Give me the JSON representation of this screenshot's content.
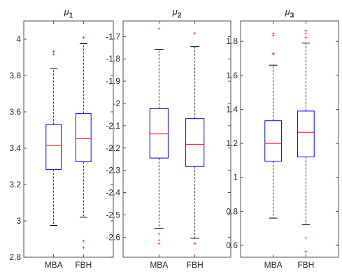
{
  "chart_data": [
    {
      "type": "boxplot",
      "title_base": "μ",
      "title_sub": "1",
      "categories": [
        "MBA",
        "FBH"
      ],
      "ylim": [
        2.8,
        4.1
      ],
      "yticks": [
        "2.8",
        "3",
        "3.2",
        "3.4",
        "3.6",
        "3.8",
        "4"
      ],
      "boxes": [
        {
          "category": "MBA",
          "whisker_low": 2.975,
          "q1": 3.283,
          "median": 3.415,
          "q3": 3.53,
          "whisker_high": 3.837,
          "outliers": [
            3.92,
            3.935
          ]
        },
        {
          "category": "FBH",
          "whisker_low": 3.02,
          "q1": 3.325,
          "median": 3.453,
          "q3": 3.59,
          "whisker_high": 3.975,
          "outliers": [
            4.01,
            2.89,
            2.853
          ]
        }
      ]
    },
    {
      "type": "boxplot",
      "title_base": "μ",
      "title_sub": "2",
      "categories": [
        "MBA",
        "FBH"
      ],
      "ylim": [
        -2.69,
        -1.63
      ],
      "yticks": [
        "-2.6",
        "-2.5",
        "-2.4",
        "-2.3",
        "-2.2",
        "-2.1",
        "-2",
        "-1.9",
        "-1.8",
        "-1.7"
      ],
      "boxes": [
        {
          "category": "MBA",
          "whisker_low": -2.56,
          "q1": -2.245,
          "median": -2.137,
          "q3": -2.023,
          "whisker_high": -1.757,
          "outliers": [
            -1.663,
            -2.585,
            -2.612,
            -2.627
          ]
        },
        {
          "category": "FBH",
          "whisker_low": -2.605,
          "q1": -2.283,
          "median": -2.183,
          "q3": -2.068,
          "whisker_high": -1.745,
          "outliers": [
            -1.684,
            -2.627
          ]
        }
      ]
    },
    {
      "type": "boxplot",
      "title_base": "μ",
      "title_sub": "3",
      "categories": [
        "MBA",
        "FBH"
      ],
      "ylim": [
        0.53,
        1.92
      ],
      "yticks": [
        "0.6",
        "0.8",
        "1",
        "1.2",
        "1.4",
        "1.6",
        "1.8"
      ],
      "boxes": [
        {
          "category": "MBA",
          "whisker_low": 0.76,
          "q1": 1.095,
          "median": 1.2,
          "q3": 1.333,
          "whisker_high": 1.66,
          "outliers": [
            1.725,
            1.73,
            1.835,
            1.85
          ]
        },
        {
          "category": "FBH",
          "whisker_low": 0.722,
          "q1": 1.12,
          "median": 1.265,
          "q3": 1.39,
          "whisker_high": 1.79,
          "outliers": [
            1.825,
            1.845,
            1.865,
            0.645,
            0.565
          ]
        }
      ]
    }
  ],
  "colors": {
    "box": "#0000ff",
    "median": "#ff0000",
    "whisker": "#000000",
    "outlier": "#ff0000",
    "axis": "#262626",
    "text": "#262626"
  }
}
